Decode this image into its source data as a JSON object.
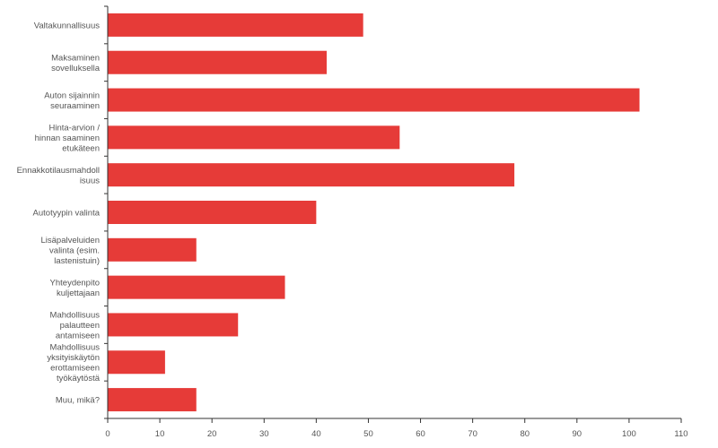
{
  "chart_data": {
    "type": "bar",
    "orientation": "horizontal",
    "categories": [
      [
        "Valtakunnallisuus"
      ],
      [
        "Maksaminen",
        "sovelluksella"
      ],
      [
        "Auton sijainnin",
        "seuraaminen"
      ],
      [
        "Hinta-arvion /",
        "hinnan saaminen",
        "etukäteen"
      ],
      [
        "Ennakkotilausmahdoll",
        "isuus"
      ],
      [
        "Autotyypin valinta"
      ],
      [
        "Lisäpalveluiden",
        "valinta (esim.",
        "lastenistuin)"
      ],
      [
        "Yhteydenpito",
        "kuljettajaan"
      ],
      [
        "Mahdollisuus",
        "palautteen",
        "antamiseen"
      ],
      [
        "Mahdollisuus",
        "yksityiskäytön",
        "erottamiseen",
        "työkäytöstä"
      ],
      [
        "Muu, mikä?"
      ]
    ],
    "values": [
      49,
      42,
      102,
      56,
      78,
      40,
      17,
      34,
      25,
      11,
      17
    ],
    "xlim": [
      0,
      110
    ],
    "xticks": [
      0,
      10,
      20,
      30,
      40,
      50,
      60,
      70,
      80,
      90,
      100,
      110
    ],
    "title": "",
    "xlabel": "",
    "ylabel": "",
    "grid": false,
    "legend": "none",
    "colors": {
      "bar": "#e63b38",
      "axis": "#333333",
      "text": "#555555"
    }
  }
}
